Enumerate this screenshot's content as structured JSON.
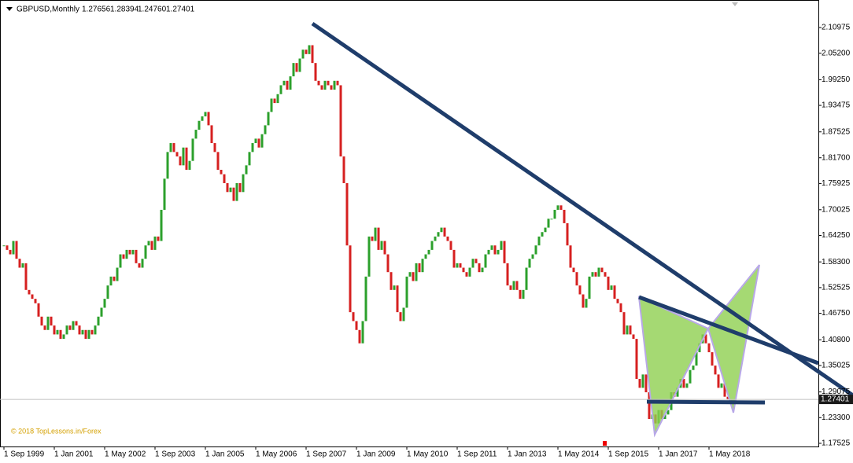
{
  "chart_data": {
    "type": "candlestick",
    "header": {
      "symbol": "GBPUSD,Monthly",
      "ohlc": [
        "1.27656",
        "1.28394",
        "1.24760",
        "1.27401"
      ]
    },
    "watermark": "© 2018 TopLessons.in/Forex",
    "up_color": "#2ca02c",
    "down_color": "#d62020",
    "close": [
      1.62,
      1.61,
      1.6,
      1.63,
      1.59,
      1.57,
      1.58,
      1.52,
      1.51,
      1.5,
      1.49,
      1.46,
      1.44,
      1.43,
      1.46,
      1.44,
      1.42,
      1.43,
      1.41,
      1.42,
      1.44,
      1.43,
      1.45,
      1.44,
      1.42,
      1.43,
      1.41,
      1.43,
      1.42,
      1.44,
      1.46,
      1.48,
      1.5,
      1.53,
      1.55,
      1.54,
      1.57,
      1.6,
      1.59,
      1.61,
      1.6,
      1.61,
      1.58,
      1.57,
      1.59,
      1.62,
      1.63,
      1.61,
      1.64,
      1.63,
      1.7,
      1.77,
      1.83,
      1.85,
      1.83,
      1.82,
      1.8,
      1.84,
      1.79,
      1.81,
      1.86,
      1.88,
      1.9,
      1.91,
      1.92,
      1.89,
      1.85,
      1.83,
      1.79,
      1.78,
      1.76,
      1.74,
      1.75,
      1.72,
      1.76,
      1.74,
      1.78,
      1.8,
      1.83,
      1.85,
      1.86,
      1.84,
      1.87,
      1.89,
      1.92,
      1.95,
      1.94,
      1.96,
      1.98,
      1.99,
      1.97,
      2.0,
      2.03,
      2.01,
      2.04,
      2.06,
      2.05,
      2.07,
      2.03,
      1.99,
      1.98,
      1.97,
      1.99,
      1.98,
      1.97,
      1.99,
      1.98,
      1.82,
      1.76,
      1.62,
      1.47,
      1.45,
      1.43,
      1.4,
      1.45,
      1.55,
      1.64,
      1.63,
      1.66,
      1.61,
      1.63,
      1.6,
      1.56,
      1.52,
      1.53,
      1.47,
      1.45,
      1.48,
      1.55,
      1.56,
      1.54,
      1.58,
      1.56,
      1.59,
      1.6,
      1.61,
      1.63,
      1.64,
      1.65,
      1.66,
      1.64,
      1.63,
      1.61,
      1.57,
      1.58,
      1.57,
      1.56,
      1.55,
      1.57,
      1.59,
      1.58,
      1.56,
      1.57,
      1.6,
      1.61,
      1.62,
      1.6,
      1.61,
      1.63,
      1.58,
      1.53,
      1.52,
      1.54,
      1.52,
      1.5,
      1.52,
      1.57,
      1.59,
      1.6,
      1.62,
      1.64,
      1.65,
      1.66,
      1.68,
      1.68,
      1.7,
      1.71,
      1.7,
      1.67,
      1.62,
      1.57,
      1.56,
      1.53,
      1.51,
      1.48,
      1.5,
      1.55,
      1.56,
      1.55,
      1.57,
      1.56,
      1.55,
      1.52,
      1.53,
      1.5,
      1.49,
      1.47,
      1.42,
      1.44,
      1.42,
      1.41,
      1.32,
      1.3,
      1.33,
      1.29,
      1.23,
      1.24,
      1.22,
      1.25,
      1.23,
      1.24,
      1.25,
      1.29,
      1.28,
      1.3,
      1.32,
      1.3,
      1.31,
      1.34,
      1.35,
      1.38,
      1.4,
      1.42,
      1.4,
      1.38,
      1.35,
      1.33,
      1.3,
      1.31,
      1.28,
      1.27401
    ],
    "xticks": [
      {
        "value": 0,
        "label": "1 Sep 1999"
      },
      {
        "value": 16,
        "label": "1 Jan 2001"
      },
      {
        "value": 32,
        "label": "1 May 2002"
      },
      {
        "value": 48,
        "label": "1 Sep 2003"
      },
      {
        "value": 64,
        "label": "1 Jan 2005"
      },
      {
        "value": 80,
        "label": "1 May 2006"
      },
      {
        "value": 96,
        "label": "1 Sep 2007"
      },
      {
        "value": 112,
        "label": "1 Jan 2009"
      },
      {
        "value": 128,
        "label": "1 May 2010"
      },
      {
        "value": 144,
        "label": "1 Sep 2011"
      },
      {
        "value": 160,
        "label": "1 Jan 2013"
      },
      {
        "value": 176,
        "label": "1 May 2014"
      },
      {
        "value": 192,
        "label": "1 Sep 2015"
      },
      {
        "value": 208,
        "label": "1 Jan 2017"
      },
      {
        "value": 224,
        "label": "1 May 2018"
      }
    ],
    "ylim": [
      1.1646,
      2.1716
    ],
    "yticks": [
      2.10975,
      {
        "value": 2.052,
        "label": "2.05200"
      },
      {
        "value": 1.9925,
        "label": "1.99250"
      },
      1.93475,
      1.87525,
      {
        "value": 1.817,
        "label": "1.81700"
      },
      1.75925,
      1.70025,
      {
        "value": 1.6425,
        "label": "1.64250"
      },
      {
        "value": 1.583,
        "label": "1.58300"
      },
      1.52525,
      {
        "value": 1.4675,
        "label": "1.46750"
      },
      {
        "value": 1.408,
        "label": "1.40800"
      },
      1.35025,
      1.29075,
      {
        "value": 1.233,
        "label": "1.23300"
      },
      1.17525
    ]
  }
}
